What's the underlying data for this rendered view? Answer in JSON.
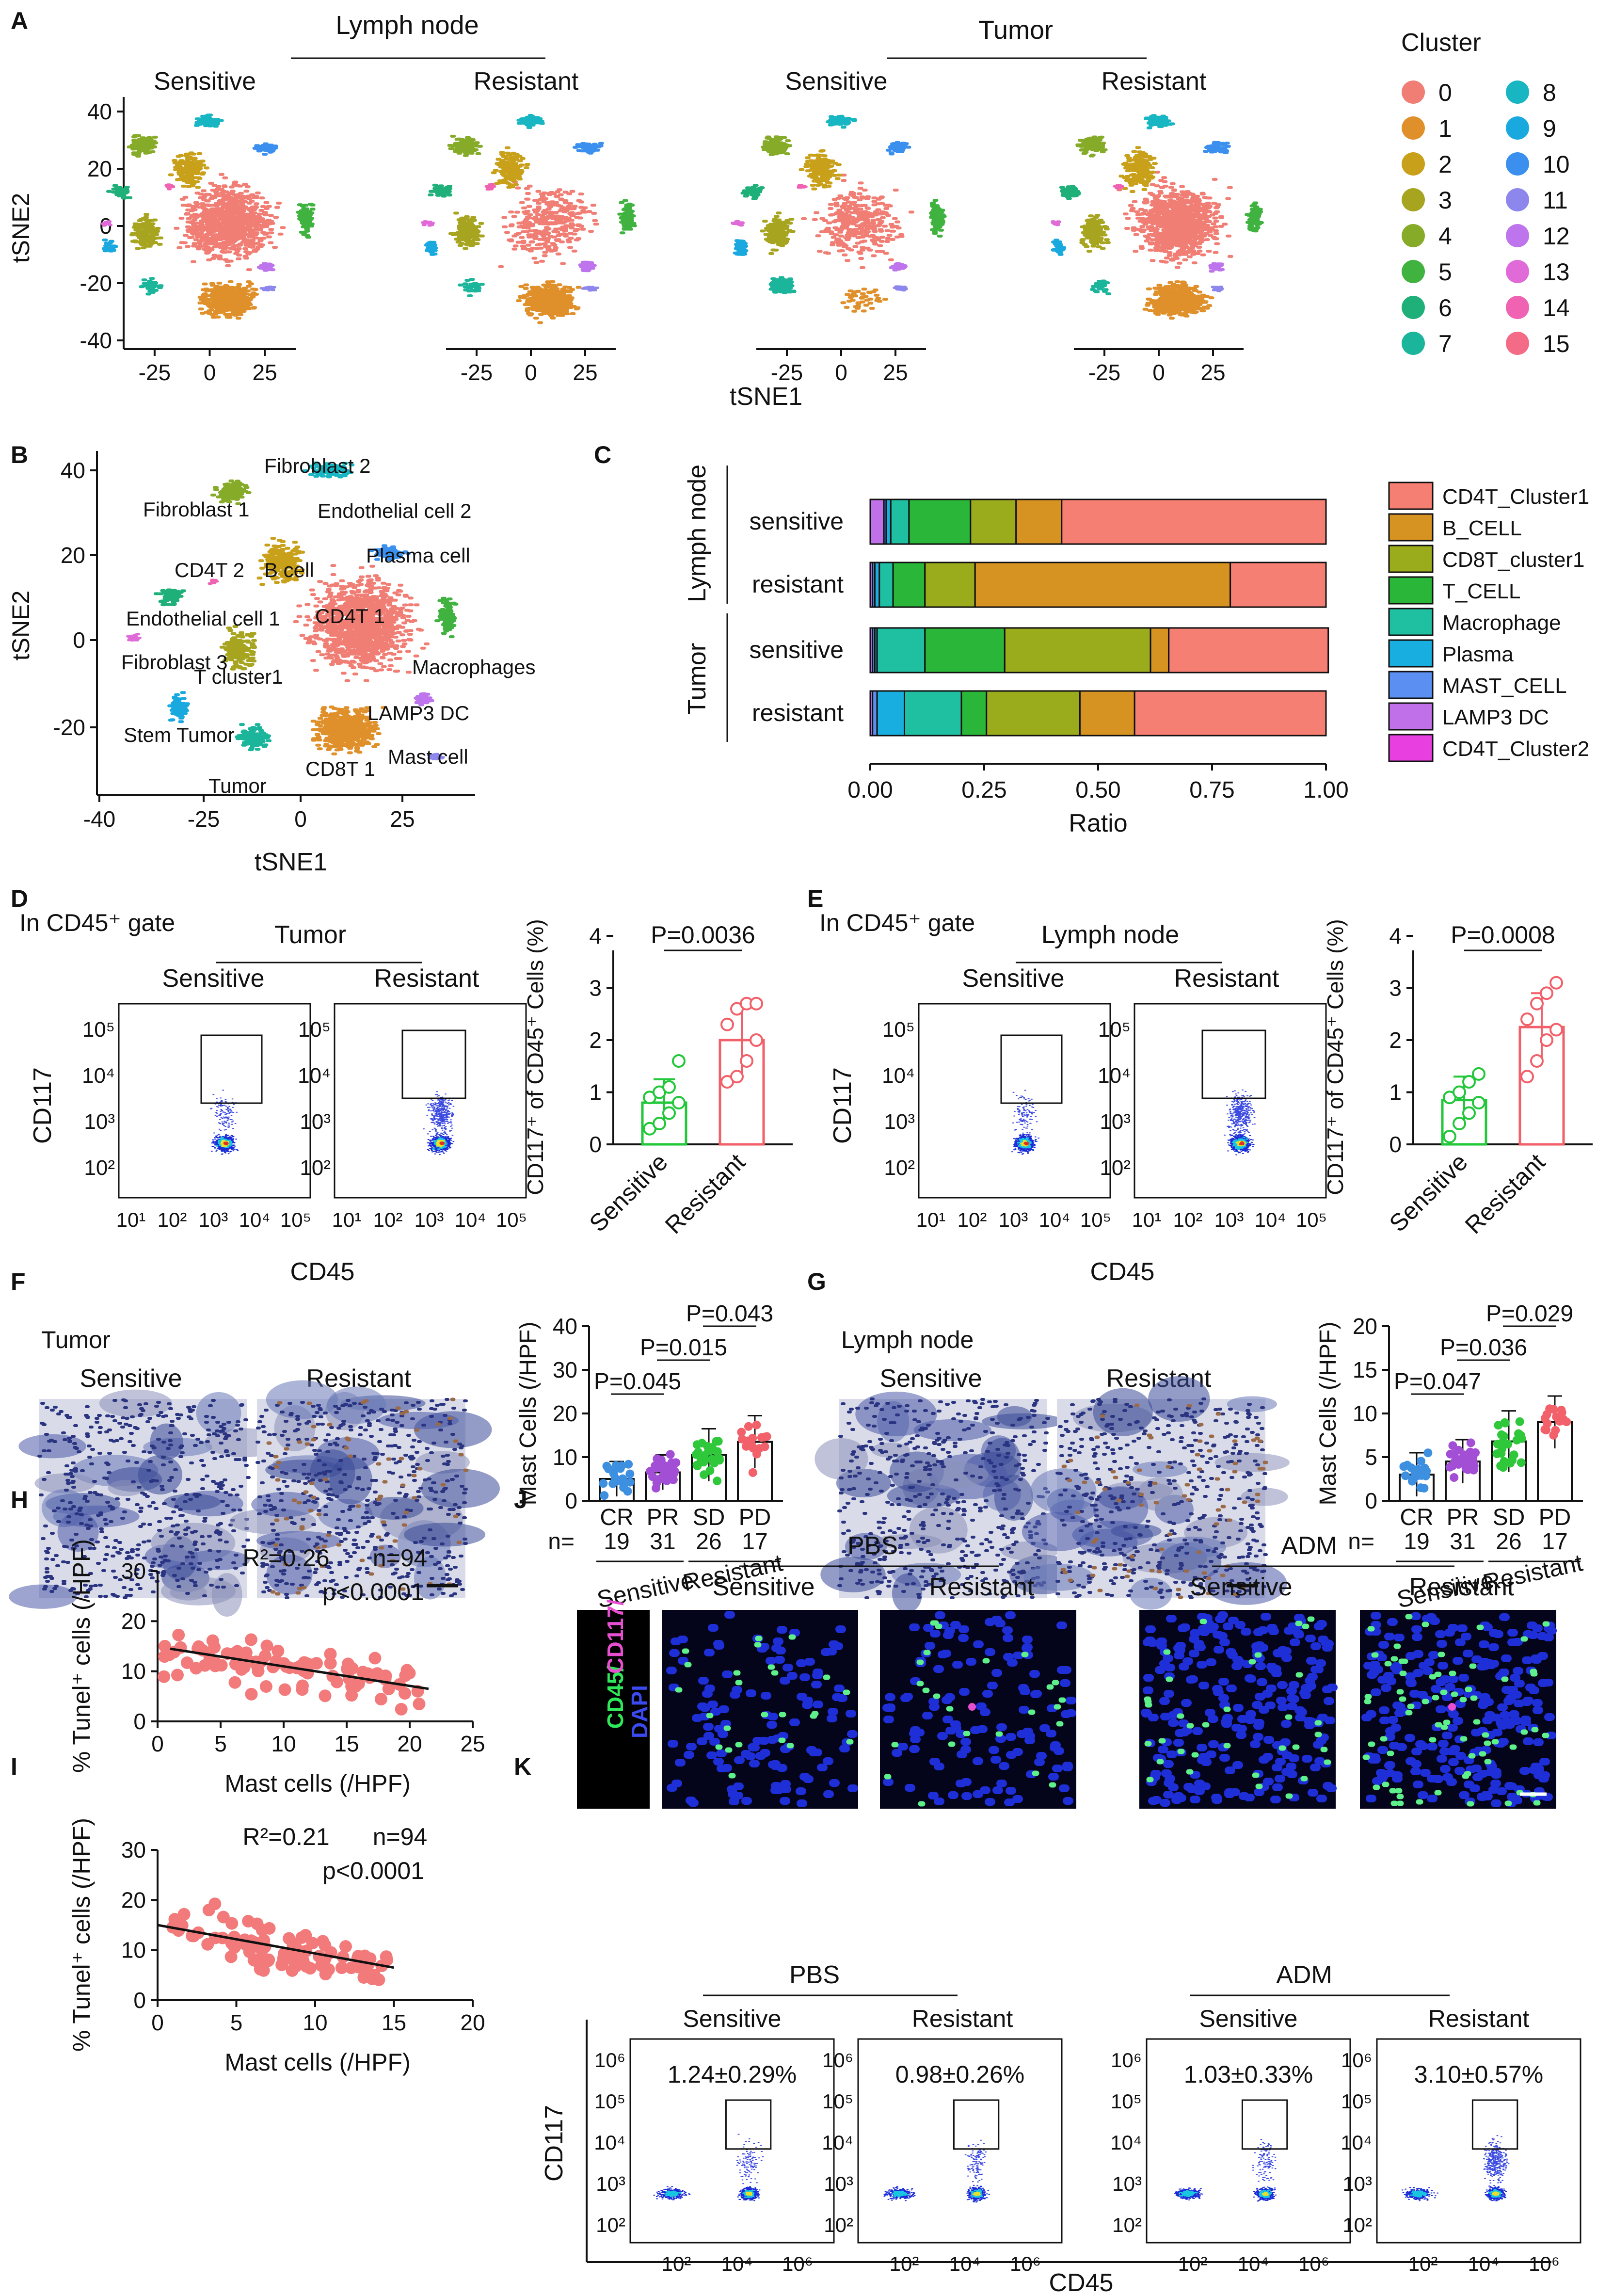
{
  "panels": {
    "A": {
      "letter": "A",
      "group_lymph": "Lymph node",
      "group_tumor": "Tumor",
      "sub_titles": [
        "Sensitive",
        "Resistant",
        "Sensitive",
        "Resistant"
      ],
      "ylabel": "tSNE2",
      "xlabel": "tSNE1",
      "yticks": [
        "40",
        "20",
        "0",
        "-20",
        "-40"
      ],
      "xticks": [
        "-25",
        "0",
        "25"
      ],
      "cluster_title": "Cluster",
      "clusters": [
        {
          "id": "0",
          "color": "#f07e74"
        },
        {
          "id": "1",
          "color": "#e0902a"
        },
        {
          "id": "2",
          "color": "#c9a01a"
        },
        {
          "id": "3",
          "color": "#a7a520"
        },
        {
          "id": "4",
          "color": "#86ab28"
        },
        {
          "id": "5",
          "color": "#3fb23f"
        },
        {
          "id": "6",
          "color": "#1fb07a"
        },
        {
          "id": "7",
          "color": "#1ab59a"
        },
        {
          "id": "8",
          "color": "#17b6c2"
        },
        {
          "id": "9",
          "color": "#19a9df"
        },
        {
          "id": "10",
          "color": "#3b90ef"
        },
        {
          "id": "11",
          "color": "#8d86ed"
        },
        {
          "id": "12",
          "color": "#bd74ec"
        },
        {
          "id": "13",
          "color": "#e06ad7"
        },
        {
          "id": "14",
          "color": "#f062b2"
        },
        {
          "id": "15",
          "color": "#f36b86"
        }
      ]
    },
    "B": {
      "letter": "B",
      "ylabel": "tSNE2",
      "xlabel": "tSNE1",
      "yticks": [
        "40",
        "20",
        "0",
        "-20"
      ],
      "xticks": [
        "-40",
        "-25",
        "0",
        "25"
      ],
      "labels": [
        "Fibroblast 2",
        "Fibroblast 1",
        "Endothelial cell 2",
        "Plasma cell",
        "CD4T 2",
        "B cell",
        "CD4T 1",
        "Endothelial cell 1",
        "Macrophages",
        "Fibroblast 3",
        "T cluster1",
        "LAMP3 DC",
        "Stem Tumor",
        "Mast cell",
        "CD8T 1",
        "Tumor"
      ]
    },
    "C": {
      "letter": "C",
      "group_lymph": "Lymph node",
      "group_tumor": "Tumor",
      "row_labels": [
        "sensitive",
        "resistant",
        "sensitive",
        "resistant"
      ],
      "xlabel": "Ratio",
      "xticks": [
        "0.00",
        "0.25",
        "0.50",
        "0.75",
        "1.00"
      ]
    },
    "D": {
      "letter": "D",
      "gate_label": "In CD45⁺ gate",
      "group": "Tumor",
      "sub_titles": [
        "Sensitive",
        "Resistant"
      ],
      "flow_ylabel": "CD117",
      "flow_xlabel": "CD45",
      "yticks": [
        "10⁵",
        "10⁴",
        "10³",
        "10²"
      ],
      "xticks": [
        "10¹",
        "10²",
        "10³",
        "10⁴",
        "10⁵"
      ],
      "bar_ylabel": "CD117⁺ of CD45⁺ Cells (%)",
      "bar_yticks": [
        "0",
        "1",
        "2",
        "3",
        "4"
      ],
      "categories": [
        "Sensitive",
        "Resistant"
      ],
      "p_label": "P=0.0036"
    },
    "E": {
      "letter": "E",
      "gate_label": "In CD45⁺ gate",
      "group": "Lymph node",
      "sub_titles": [
        "Sensitive",
        "Resistant"
      ],
      "flow_ylabel": "CD117",
      "flow_xlabel": "CD45",
      "yticks": [
        "10⁵",
        "10⁴",
        "10³",
        "10²"
      ],
      "xticks": [
        "10¹",
        "10²",
        "10³",
        "10⁴",
        "10⁵"
      ],
      "bar_ylabel": "CD117⁺ of CD45⁺ Cells (%)",
      "bar_yticks": [
        "0",
        "1",
        "2",
        "3",
        "4"
      ],
      "categories": [
        "Sensitive",
        "Resistant"
      ],
      "p_label": "P=0.0008"
    },
    "F": {
      "letter": "F",
      "tissue": "Tumor",
      "sub_titles": [
        "Sensitive",
        "Resistant"
      ],
      "ylabel": "Mast Cells (/HPF)",
      "yticks": [
        "0",
        "10",
        "20",
        "30",
        "40"
      ],
      "categories": [
        "CR",
        "PR",
        "SD",
        "PD"
      ],
      "n_prefix": "n=",
      "n_values": [
        "19",
        "31",
        "26",
        "17"
      ],
      "group_labels": [
        "Sensitive",
        "Resistant"
      ],
      "p_labels": [
        "P=0.045",
        "P=0.015",
        "P=0.043"
      ]
    },
    "G": {
      "letter": "G",
      "tissue": "Lymph node",
      "sub_titles": [
        "Sensitive",
        "Resistant"
      ],
      "ylabel": "Mast Cells (/HPF)",
      "yticks": [
        "0",
        "5",
        "10",
        "15",
        "20"
      ],
      "categories": [
        "CR",
        "PR",
        "SD",
        "PD"
      ],
      "n_prefix": "n=",
      "n_values": [
        "19",
        "31",
        "26",
        "17"
      ],
      "group_labels": [
        "Sensitive",
        "Resistant"
      ],
      "p_labels": [
        "P=0.047",
        "P=0.036",
        "P=0.029"
      ]
    },
    "H": {
      "letter": "H",
      "r2": "R²=0.26",
      "n": "n=94",
      "p": "p<0.0001",
      "ylabel": "% Tunel⁺ cells (/HPF)",
      "xlabel": "Mast cells (/HPF)",
      "yticks": [
        "0",
        "10",
        "20",
        "30"
      ],
      "xticks": [
        "0",
        "5",
        "10",
        "15",
        "20",
        "25"
      ]
    },
    "I": {
      "letter": "I",
      "r2": "R²=0.21",
      "n": "n=94",
      "p": "p<0.0001",
      "ylabel": "% Tunel⁺ cells (/HPF)",
      "xlabel": "Mast cells (/HPF)",
      "yticks": [
        "0",
        "10",
        "20",
        "30"
      ],
      "xticks": [
        "0",
        "5",
        "10",
        "15",
        "20"
      ]
    },
    "J": {
      "letter": "J",
      "groups": [
        "PBS",
        "ADM"
      ],
      "sub_titles": [
        "Sensitive",
        "Resistant",
        "Sensitive",
        "Resistant"
      ],
      "stain_cd45": "CD45/",
      "stain_cd117": "CD117/",
      "stain_dapi": "DAPI"
    },
    "K": {
      "letter": "K",
      "groups": [
        "PBS",
        "ADM"
      ],
      "sub_titles": [
        "Sensitive",
        "Resistant",
        "Sensitive",
        "Resistant"
      ],
      "percentages": [
        "1.24±0.29%",
        "0.98±0.26%",
        "1.03±0.33%",
        "3.10±0.57%"
      ],
      "ylabel": "CD117",
      "xlabel": "CD45",
      "yticks": [
        "10⁶",
        "10⁵",
        "10⁴",
        "10³",
        "10²"
      ],
      "xticks": [
        "10²",
        "10⁴",
        "10⁶"
      ]
    }
  },
  "chart_data": [
    {
      "type": "bar",
      "title": "C: cell type composition (stacked)",
      "xlabel": "Ratio",
      "xlim": [
        0,
        1
      ],
      "categories": [
        "Lymph node sensitive",
        "Lymph node resistant",
        "Tumor sensitive",
        "Tumor resistant"
      ],
      "series": [
        {
          "name": "CD4T_Cluster2",
          "color": "#e83fe0",
          "values": [
            0.0,
            0.0,
            0.0,
            0.0
          ]
        },
        {
          "name": "LAMP3 DC",
          "color": "#c070e8",
          "values": [
            0.03,
            0.005,
            0.005,
            0.005
          ]
        },
        {
          "name": "MAST_CELL",
          "color": "#5b8ff2",
          "values": [
            0.005,
            0.005,
            0.005,
            0.01
          ]
        },
        {
          "name": "Plasma",
          "color": "#18aee0",
          "values": [
            0.01,
            0.01,
            0.005,
            0.06
          ]
        },
        {
          "name": "Macrophage",
          "color": "#1fbfa2",
          "values": [
            0.04,
            0.03,
            0.105,
            0.125
          ]
        },
        {
          "name": "T_CELL",
          "color": "#2ab638",
          "values": [
            0.135,
            0.07,
            0.175,
            0.055
          ]
        },
        {
          "name": "CD8T_cluster1",
          "color": "#9aab1c",
          "values": [
            0.1,
            0.11,
            0.32,
            0.205
          ]
        },
        {
          "name": "B_CELL",
          "color": "#d69322",
          "values": [
            0.1,
            0.56,
            0.04,
            0.12
          ]
        },
        {
          "name": "CD4T_Cluster1",
          "color": "#f57f72",
          "values": [
            0.58,
            0.21,
            0.35,
            0.42
          ]
        }
      ],
      "legend": "right"
    },
    {
      "type": "bar",
      "title": "D: CD117+ of CD45+ cells, Tumor",
      "ylabel": "CD117⁺ of CD45⁺ Cells (%)",
      "ylim": [
        0,
        4
      ],
      "categories": [
        "Sensitive",
        "Resistant"
      ],
      "values": [
        0.8,
        2.0
      ],
      "errors": [
        0.45,
        0.65
      ],
      "points": [
        [
          0.3,
          0.4,
          0.6,
          0.8,
          0.9,
          1.0,
          1.1,
          1.6
        ],
        [
          1.2,
          1.3,
          1.6,
          2.0,
          2.3,
          2.6,
          2.7,
          2.7
        ]
      ]
    },
    {
      "type": "bar",
      "title": "E: CD117+ of CD45+ cells, Lymph node",
      "ylabel": "CD117⁺ of CD45⁺ Cells (%)",
      "ylim": [
        0,
        4
      ],
      "categories": [
        "Sensitive",
        "Resistant"
      ],
      "values": [
        0.85,
        2.25
      ],
      "errors": [
        0.45,
        0.65
      ],
      "points": [
        [
          0.15,
          0.4,
          0.6,
          0.8,
          0.9,
          1.0,
          1.2,
          1.35
        ],
        [
          1.3,
          1.6,
          2.0,
          2.2,
          2.4,
          2.7,
          2.9,
          3.1
        ]
      ]
    },
    {
      "type": "bar",
      "title": "F: Mast cells, Tumor",
      "ylabel": "Mast Cells (/HPF)",
      "ylim": [
        0,
        40
      ],
      "categories": [
        "CR",
        "PR",
        "SD",
        "PD"
      ],
      "values": [
        5,
        6.5,
        10.5,
        13.5
      ],
      "errors": [
        4,
        4,
        6,
        6
      ],
      "colors": [
        "#3d8fe0",
        "#a24fd6",
        "#2fc83a",
        "#f2606a"
      ]
    },
    {
      "type": "bar",
      "title": "G: Mast cells, Lymph node",
      "ylabel": "Mast Cells (/HPF)",
      "ylim": [
        0,
        20
      ],
      "categories": [
        "CR",
        "PR",
        "SD",
        "PD"
      ],
      "values": [
        3,
        4.5,
        6.8,
        9
      ],
      "errors": [
        2.5,
        2.5,
        3.5,
        3
      ],
      "colors": [
        "#3d8fe0",
        "#a24fd6",
        "#2fc83a",
        "#f2606a"
      ]
    },
    {
      "type": "scatter",
      "title": "H",
      "xlabel": "Mast cells (/HPF)",
      "ylabel": "% Tunel⁺ cells (/HPF)",
      "xlim": [
        0,
        25
      ],
      "ylim": [
        0,
        30
      ],
      "fit": {
        "x": [
          1,
          21.5
        ],
        "y": [
          14.5,
          6.5
        ]
      }
    },
    {
      "type": "scatter",
      "title": "I",
      "xlabel": "Mast cells (/HPF)",
      "ylabel": "% Tunel⁺ cells (/HPF)",
      "xlim": [
        0,
        20
      ],
      "ylim": [
        0,
        30
      ],
      "fit": {
        "x": [
          0,
          15
        ],
        "y": [
          15,
          6.5
        ]
      }
    }
  ]
}
